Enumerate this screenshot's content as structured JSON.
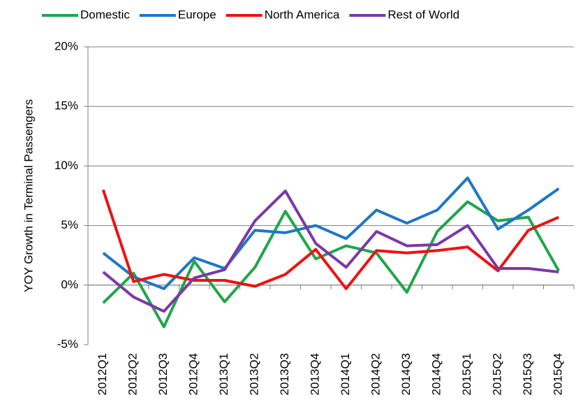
{
  "chart_data": {
    "type": "line",
    "y_label": "YOY Growth in Terminal Passengers",
    "categories": [
      "2012Q1",
      "2012Q2",
      "2012Q3",
      "2012Q4",
      "2013Q1",
      "2013Q2",
      "2013Q3",
      "2013Q4",
      "2014Q1",
      "2014Q2",
      "2014Q3",
      "2014Q4",
      "2015Q1",
      "2015Q2",
      "2015Q3",
      "2015Q4"
    ],
    "series": [
      {
        "name": "Domestic",
        "color": "#1fa64a",
        "values": [
          -1.5,
          1.0,
          -3.5,
          2.0,
          -1.4,
          1.5,
          6.2,
          2.2,
          3.3,
          2.7,
          -0.6,
          4.5,
          7.0,
          5.4,
          5.7,
          1.2
        ]
      },
      {
        "name": "Europe",
        "color": "#1f77c4",
        "values": [
          2.7,
          0.7,
          -0.3,
          2.3,
          1.4,
          4.6,
          4.4,
          5.0,
          3.9,
          6.3,
          5.2,
          6.3,
          9.0,
          4.7,
          6.3,
          8.1
        ]
      },
      {
        "name": "North America",
        "color": "#ee1111",
        "values": [
          8.0,
          0.3,
          0.9,
          0.4,
          0.4,
          -0.1,
          0.9,
          3.0,
          -0.3,
          2.9,
          2.7,
          2.9,
          3.2,
          1.2,
          4.6,
          5.7
        ]
      },
      {
        "name": "Rest of World",
        "color": "#7b38a6",
        "values": [
          1.1,
          -1.0,
          -2.2,
          0.6,
          1.3,
          5.4,
          7.9,
          3.5,
          1.5,
          4.5,
          3.3,
          3.4,
          5.0,
          1.4,
          1.4,
          1.1
        ]
      }
    ],
    "ylim": [
      -5,
      20
    ],
    "yticks": [
      {
        "value": -5,
        "label": "-5%"
      },
      {
        "value": 0,
        "label": "0%"
      },
      {
        "value": 5,
        "label": "5%"
      },
      {
        "value": 10,
        "label": "10%"
      },
      {
        "value": 15,
        "label": "15%"
      },
      {
        "value": 20,
        "label": "20%"
      }
    ],
    "grid": true,
    "legend": "top"
  }
}
